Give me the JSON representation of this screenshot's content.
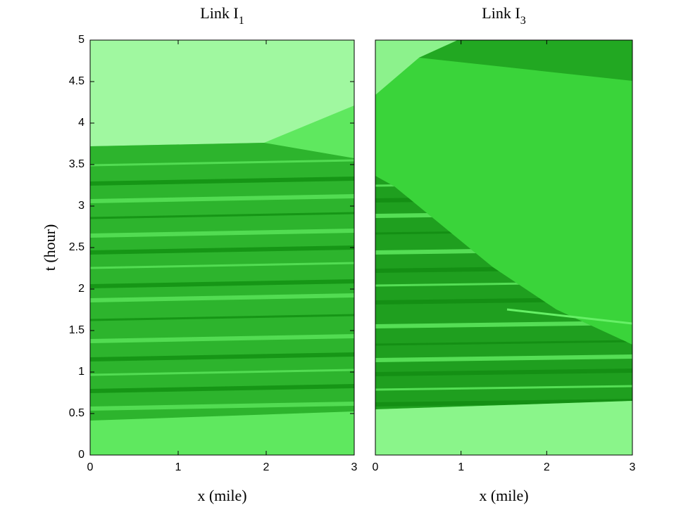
{
  "chart_data": [
    {
      "type": "heatmap",
      "title": {
        "text": "Link I",
        "subscript": "1"
      },
      "xlabel": "x (mile)",
      "ylabel": "t (hour)",
      "xlim": [
        0,
        3
      ],
      "ylim": [
        0,
        5
      ],
      "xticks": [
        0,
        1,
        2,
        3
      ],
      "yticks": [
        0,
        0.5,
        1,
        1.5,
        2,
        2.5,
        3,
        3.5,
        4,
        4.5,
        5
      ]
    },
    {
      "type": "heatmap",
      "title": {
        "text": "Link I",
        "subscript": "3"
      },
      "xlabel": "x (mile)",
      "xlim": [
        0,
        3
      ],
      "ylim": [
        0,
        5
      ],
      "xticks": [
        0,
        1,
        2,
        3
      ]
    }
  ]
}
